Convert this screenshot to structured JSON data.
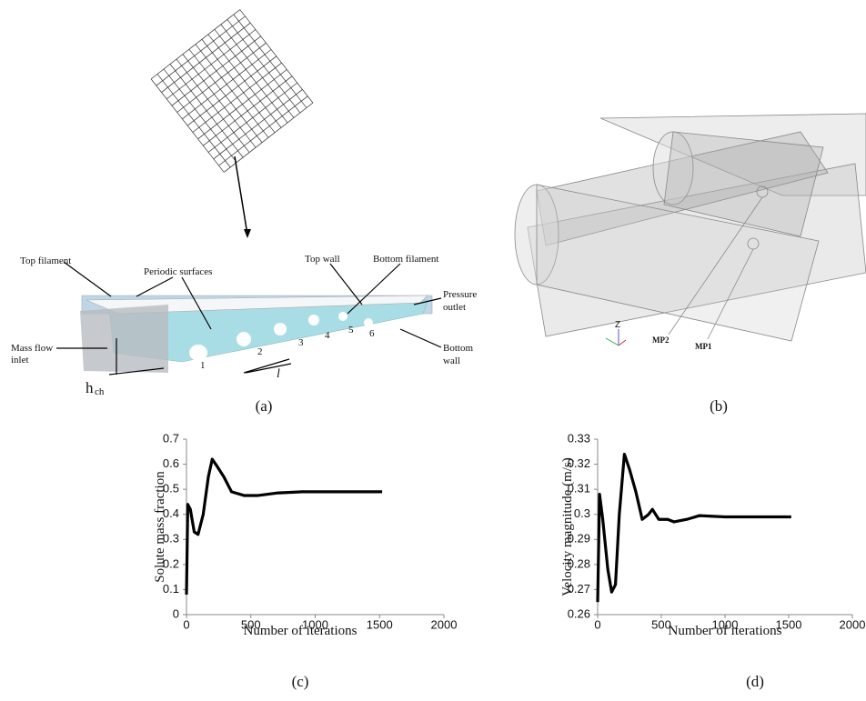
{
  "panel_a": {
    "panel_label": "(a)",
    "top_filament": "Top filament",
    "periodic_surfaces": "Periodic surfaces",
    "top_wall": "Top wall",
    "bottom_filament": "Bottom filament",
    "pressure_outlet": [
      "Pressure",
      "outlet"
    ],
    "mass_flow_inlet": [
      "Mass flow",
      "inlet"
    ],
    "bottom_wall": [
      "Bottom",
      "wall"
    ],
    "height_symbol": "h",
    "height_subscript": "ch",
    "filament_numbers": [
      "1",
      "2",
      "3",
      "4",
      "5",
      "6"
    ],
    "length_symbol": "l"
  },
  "panel_b": {
    "panel_label": "(b)",
    "monitor_points": [
      "MP2",
      "MP1"
    ],
    "axis_label": "Z"
  },
  "chart_data": [
    {
      "type": "line",
      "panel_label": "(c)",
      "x_label": "Number of iterations",
      "y_label": "Solute mass fraction",
      "color": "#000000",
      "x": [
        0,
        10,
        30,
        60,
        90,
        130,
        170,
        200,
        240,
        290,
        350,
        450,
        550,
        700,
        900,
        1200,
        1520
      ],
      "values": [
        0.08,
        0.44,
        0.42,
        0.33,
        0.32,
        0.4,
        0.55,
        0.62,
        0.59,
        0.55,
        0.49,
        0.475,
        0.475,
        0.485,
        0.49,
        0.49,
        0.49
      ],
      "xlim": [
        0,
        2000
      ],
      "xticks": [
        0,
        500,
        1000,
        1500,
        2000
      ],
      "ylim": [
        0,
        0.7
      ],
      "yticks": [
        0,
        0.1,
        0.2,
        0.3,
        0.4,
        0.5,
        0.6,
        0.7
      ]
    },
    {
      "type": "line",
      "panel_label": "(d)",
      "x_label": "Number of iterations",
      "y_label": "Velocity magnitude (m/s)",
      "color": "#000000",
      "x": [
        0,
        15,
        40,
        80,
        110,
        140,
        170,
        210,
        250,
        300,
        350,
        400,
        430,
        480,
        550,
        600,
        700,
        800,
        1000,
        1520
      ],
      "values": [
        0.265,
        0.308,
        0.298,
        0.278,
        0.269,
        0.272,
        0.3,
        0.324,
        0.318,
        0.309,
        0.298,
        0.3,
        0.302,
        0.298,
        0.298,
        0.297,
        0.298,
        0.2995,
        0.299,
        0.299
      ],
      "xlim": [
        0,
        2000
      ],
      "xticks": [
        0,
        500,
        1000,
        1500,
        2000
      ],
      "ylim": [
        0.26,
        0.33
      ],
      "yticks": [
        0.26,
        0.27,
        0.28,
        0.29,
        0.3,
        0.31,
        0.32,
        0.33
      ]
    }
  ]
}
